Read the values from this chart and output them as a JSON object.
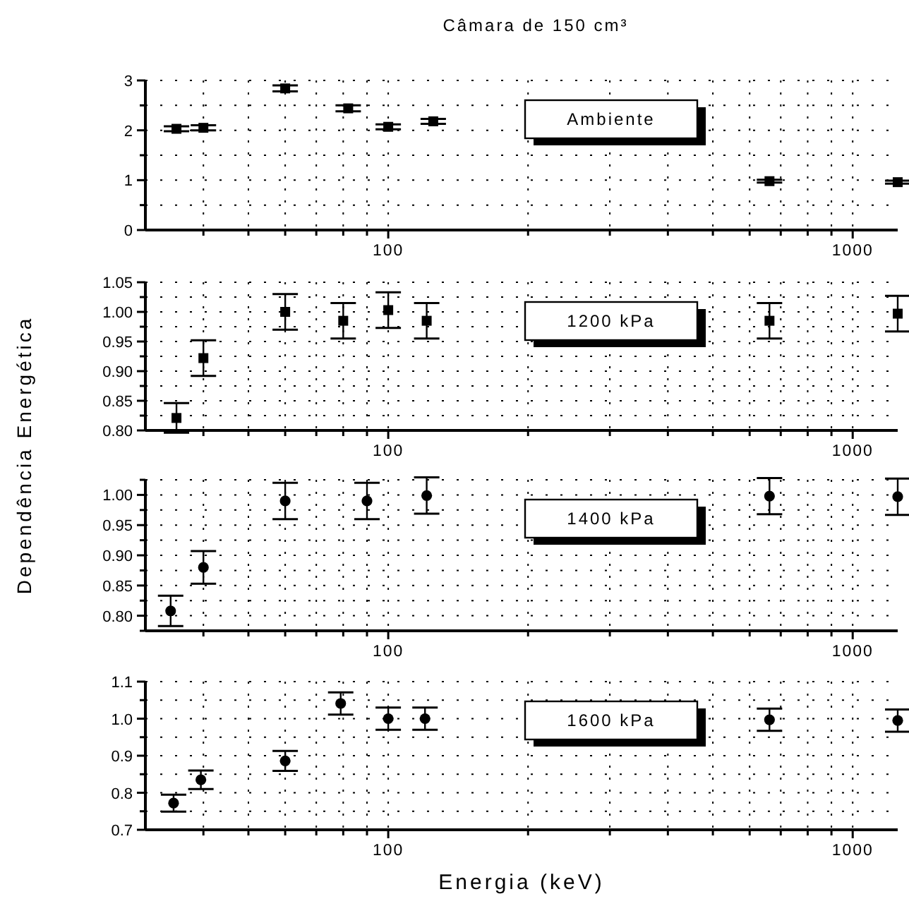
{
  "chart_data": [
    {
      "type": "scatter",
      "title": "Câmara de 150 cm³",
      "ylabel": "Dependência Energética",
      "annotations": [
        "Ambiente"
      ],
      "marker": "square",
      "grid": true,
      "x": [
        35,
        40,
        60,
        82,
        100,
        125,
        662,
        1250
      ],
      "values": [
        2.03,
        2.05,
        2.84,
        2.44,
        2.07,
        2.18,
        0.98,
        0.96
      ],
      "errors": [
        0.05,
        0.05,
        0.06,
        0.06,
        0.05,
        0.05,
        0.03,
        0.03
      ],
      "xlim": [
        30,
        1250
      ],
      "xticks": [
        {
          "value": 40,
          "label": null
        },
        {
          "value": 50,
          "label": null
        },
        {
          "value": 60,
          "label": null
        },
        {
          "value": 70,
          "label": null
        },
        {
          "value": 80,
          "label": null
        },
        {
          "value": 90,
          "label": null
        },
        {
          "value": 100,
          "label": "100"
        },
        {
          "value": 200,
          "label": null
        },
        {
          "value": 300,
          "label": null
        },
        {
          "value": 400,
          "label": null
        },
        {
          "value": 500,
          "label": null
        },
        {
          "value": 600,
          "label": null
        },
        {
          "value": 700,
          "label": null
        },
        {
          "value": 800,
          "label": null
        },
        {
          "value": 900,
          "label": null
        },
        {
          "value": 1000,
          "label": "1000"
        }
      ],
      "log": "x",
      "ylim": [
        0,
        3
      ],
      "yticks": [
        0,
        {
          "value": 0.5,
          "label": null
        },
        1,
        {
          "value": 1.5,
          "label": null
        },
        2,
        {
          "value": 2.5,
          "label": null
        },
        3
      ]
    },
    {
      "type": "scatter",
      "annotations": [
        "1200 kPa"
      ],
      "marker": "square",
      "grid": true,
      "x": [
        35,
        40,
        60,
        80,
        100,
        121,
        662,
        1250
      ],
      "values": [
        0.821,
        0.922,
        1.0,
        0.985,
        1.003,
        0.985,
        0.985,
        0.997
      ],
      "errors": [
        0.025,
        0.03,
        0.03,
        0.03,
        0.03,
        0.03,
        0.03,
        0.03
      ],
      "xlim": [
        30,
        1250
      ],
      "xticks": [
        {
          "value": 40,
          "label": null
        },
        {
          "value": 50,
          "label": null
        },
        {
          "value": 60,
          "label": null
        },
        {
          "value": 70,
          "label": null
        },
        {
          "value": 80,
          "label": null
        },
        {
          "value": 90,
          "label": null
        },
        {
          "value": 100,
          "label": "100"
        },
        {
          "value": 200,
          "label": null
        },
        {
          "value": 300,
          "label": null
        },
        {
          "value": 400,
          "label": null
        },
        {
          "value": 500,
          "label": null
        },
        {
          "value": 600,
          "label": null
        },
        {
          "value": 700,
          "label": null
        },
        {
          "value": 800,
          "label": null
        },
        {
          "value": 900,
          "label": null
        },
        {
          "value": 1000,
          "label": "1000"
        }
      ],
      "log": "x",
      "ylim": [
        0.8,
        1.05
      ],
      "yticks": [
        {
          "value": 0.8,
          "label": "0.80"
        },
        {
          "value": 0.825,
          "label": null
        },
        {
          "value": 0.85,
          "label": "0.85"
        },
        {
          "value": 0.875,
          "label": null
        },
        {
          "value": 0.9,
          "label": "0.90"
        },
        {
          "value": 0.925,
          "label": null
        },
        {
          "value": 0.95,
          "label": "0.95"
        },
        {
          "value": 0.975,
          "label": null
        },
        {
          "value": 1.0,
          "label": "1.00"
        },
        {
          "value": 1.025,
          "label": null
        },
        {
          "value": 1.05,
          "label": "1.05"
        }
      ]
    },
    {
      "type": "scatter",
      "annotations": [
        "1400 kPa"
      ],
      "marker": "circle",
      "grid": true,
      "x": [
        34,
        40,
        60,
        90,
        121,
        662,
        1250
      ],
      "values": [
        0.808,
        0.88,
        0.99,
        0.99,
        0.999,
        0.998,
        0.997
      ],
      "errors": [
        0.025,
        0.027,
        0.03,
        0.03,
        0.03,
        0.03,
        0.03
      ],
      "xlim": [
        30,
        1250
      ],
      "xticks": [
        {
          "value": 40,
          "label": null
        },
        {
          "value": 50,
          "label": null
        },
        {
          "value": 60,
          "label": null
        },
        {
          "value": 70,
          "label": null
        },
        {
          "value": 80,
          "label": null
        },
        {
          "value": 90,
          "label": null
        },
        {
          "value": 100,
          "label": "100"
        },
        {
          "value": 200,
          "label": null
        },
        {
          "value": 300,
          "label": null
        },
        {
          "value": 400,
          "label": null
        },
        {
          "value": 500,
          "label": null
        },
        {
          "value": 600,
          "label": null
        },
        {
          "value": 700,
          "label": null
        },
        {
          "value": 800,
          "label": null
        },
        {
          "value": 900,
          "label": null
        },
        {
          "value": 1000,
          "label": "1000"
        }
      ],
      "log": "x",
      "ylim": [
        0.775,
        1.025
      ],
      "yticks": [
        {
          "value": 0.775,
          "label": null
        },
        {
          "value": 0.8,
          "label": "0.80"
        },
        {
          "value": 0.825,
          "label": null
        },
        {
          "value": 0.85,
          "label": "0.85"
        },
        {
          "value": 0.875,
          "label": null
        },
        {
          "value": 0.9,
          "label": "0.90"
        },
        {
          "value": 0.925,
          "label": null
        },
        {
          "value": 0.95,
          "label": "0.95"
        },
        {
          "value": 0.975,
          "label": null
        },
        {
          "value": 1.0,
          "label": "1.00"
        },
        {
          "value": 1.025,
          "label": null
        }
      ]
    },
    {
      "type": "scatter",
      "xlabel": "Energia (keV)",
      "annotations": [
        "1600 kPa"
      ],
      "marker": "circle",
      "grid": true,
      "x": [
        34.5,
        39.5,
        60,
        79,
        100,
        120,
        662,
        1250
      ],
      "values": [
        0.772,
        0.835,
        0.886,
        1.041,
        1.0,
        1.0,
        0.997,
        0.995
      ],
      "errors": [
        0.023,
        0.025,
        0.027,
        0.03,
        0.03,
        0.03,
        0.03,
        0.03
      ],
      "xlim": [
        30,
        1250
      ],
      "xticks": [
        {
          "value": 40,
          "label": null
        },
        {
          "value": 50,
          "label": null
        },
        {
          "value": 60,
          "label": null
        },
        {
          "value": 70,
          "label": null
        },
        {
          "value": 80,
          "label": null
        },
        {
          "value": 90,
          "label": null
        },
        {
          "value": 100,
          "label": "100"
        },
        {
          "value": 200,
          "label": null
        },
        {
          "value": 300,
          "label": null
        },
        {
          "value": 400,
          "label": null
        },
        {
          "value": 500,
          "label": null
        },
        {
          "value": 600,
          "label": null
        },
        {
          "value": 700,
          "label": null
        },
        {
          "value": 800,
          "label": null
        },
        {
          "value": 900,
          "label": null
        },
        {
          "value": 1000,
          "label": "1000"
        }
      ],
      "log": "x",
      "ylim": [
        0.7,
        1.1
      ],
      "yticks": [
        {
          "value": 0.7,
          "label": "0.7"
        },
        {
          "value": 0.75,
          "label": null
        },
        {
          "value": 0.8,
          "label": "0.8"
        },
        {
          "value": 0.85,
          "label": null
        },
        {
          "value": 0.9,
          "label": "0.9"
        },
        {
          "value": 0.95,
          "label": null
        },
        {
          "value": 1.0,
          "label": "1.0"
        },
        {
          "value": 1.05,
          "label": null
        },
        {
          "value": 1.1,
          "label": "1.1"
        }
      ]
    }
  ]
}
